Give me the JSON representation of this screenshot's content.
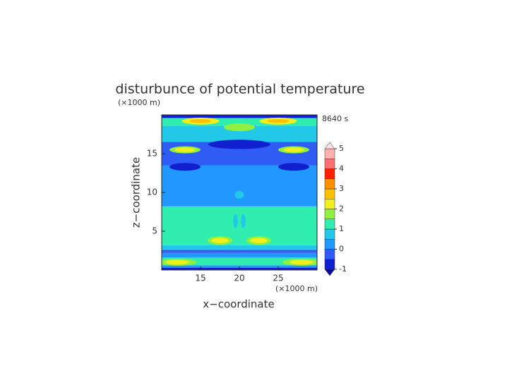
{
  "chart_data": {
    "type": "contour",
    "title": "disturbunce of potential temperature",
    "time_label": "8640 s",
    "x_label": "x−coordinate",
    "y_label": "z−coordinate",
    "x_unit": "(×1000 m)",
    "y_unit": "(×1000 m)",
    "xlim": [
      10,
      30
    ],
    "ylim": [
      0,
      20
    ],
    "xticks": [
      15,
      20,
      25
    ],
    "yticks": [
      5,
      10,
      15
    ],
    "colorbar": {
      "ticks": [
        -1,
        0,
        1,
        2,
        3,
        4,
        5
      ],
      "levels": [
        -1,
        -0.5,
        0,
        0.5,
        1,
        1.5,
        2,
        2.5,
        3,
        3.5,
        4,
        4.5,
        5
      ],
      "colors": [
        "#1020d0",
        "#2f5cf5",
        "#2098ff",
        "#22c8e8",
        "#30eeb0",
        "#90f040",
        "#f0f020",
        "#ffc000",
        "#ff9000",
        "#ff2000",
        "#ff7070",
        "#ffb0b0"
      ],
      "under_color": "#0a0aa0",
      "over_color": "#ffe0e0"
    },
    "bands": [
      {
        "z0": 0,
        "z1": 0.3,
        "value": -0.75
      },
      {
        "z0": 0.3,
        "z1": 0.6,
        "value": 0.25
      },
      {
        "z0": 0.6,
        "z1": 1.6,
        "value": 1.25
      },
      {
        "z0": 1.6,
        "z1": 2.2,
        "value": 0.25
      },
      {
        "z0": 2.2,
        "z1": 2.6,
        "value": -0.25
      },
      {
        "z0": 2.6,
        "z1": 3.2,
        "value": 0.75
      },
      {
        "z0": 3.2,
        "z1": 8.2,
        "value": 1.25
      },
      {
        "z0": 8.2,
        "z1": 13.5,
        "value": 0.25
      },
      {
        "z0": 13.5,
        "z1": 16.5,
        "value": -0.25
      },
      {
        "z0": 16.5,
        "z1": 18.6,
        "value": 0.75
      },
      {
        "z0": 18.6,
        "z1": 19.6,
        "value": 1.25
      },
      {
        "z0": 19.6,
        "z1": 20,
        "value": -0.75
      }
    ],
    "blobs": [
      {
        "x": 12,
        "z": 1,
        "rx": 2.5,
        "rz": 0.45,
        "value": 1.75
      },
      {
        "x": 28,
        "z": 1,
        "rx": 2.5,
        "rz": 0.45,
        "value": 1.75
      },
      {
        "x": 12,
        "z": 1,
        "rx": 1.5,
        "rz": 0.3,
        "value": 2.25
      },
      {
        "x": 28,
        "z": 1,
        "rx": 1.5,
        "rz": 0.3,
        "value": 2.25
      },
      {
        "x": 17.5,
        "z": 3.8,
        "rx": 1.6,
        "rz": 0.55,
        "value": 1.75
      },
      {
        "x": 22.5,
        "z": 3.8,
        "rx": 1.6,
        "rz": 0.55,
        "value": 1.75
      },
      {
        "x": 17.5,
        "z": 3.8,
        "rx": 1.1,
        "rz": 0.35,
        "value": 2.25
      },
      {
        "x": 22.5,
        "z": 3.8,
        "rx": 1.1,
        "rz": 0.35,
        "value": 2.25
      },
      {
        "x": 19.5,
        "z": 6.3,
        "rx": 0.3,
        "rz": 0.9,
        "value": 0.75
      },
      {
        "x": 20.5,
        "z": 6.3,
        "rx": 0.3,
        "rz": 0.9,
        "value": 0.75
      },
      {
        "x": 20,
        "z": 9.7,
        "rx": 0.6,
        "rz": 0.5,
        "value": 0.75
      },
      {
        "x": 13,
        "z": 13.3,
        "rx": 2,
        "rz": 0.5,
        "value": -0.75
      },
      {
        "x": 27,
        "z": 13.3,
        "rx": 2,
        "rz": 0.5,
        "value": -0.75
      },
      {
        "x": 20,
        "z": 16.2,
        "rx": 4,
        "rz": 0.6,
        "value": -0.75
      },
      {
        "x": 13,
        "z": 15.5,
        "rx": 2,
        "rz": 0.45,
        "value": 1.75
      },
      {
        "x": 27,
        "z": 15.5,
        "rx": 2,
        "rz": 0.45,
        "value": 1.75
      },
      {
        "x": 13,
        "z": 15.5,
        "rx": 1.3,
        "rz": 0.3,
        "value": 2.25
      },
      {
        "x": 27,
        "z": 15.5,
        "rx": 1.3,
        "rz": 0.3,
        "value": 2.25
      },
      {
        "x": 20,
        "z": 18.4,
        "rx": 2,
        "rz": 0.5,
        "value": 1.75
      },
      {
        "x": 15,
        "z": 19.2,
        "rx": 2.4,
        "rz": 0.45,
        "value": 2.25
      },
      {
        "x": 25,
        "z": 19.2,
        "rx": 2.4,
        "rz": 0.45,
        "value": 2.25
      },
      {
        "x": 15,
        "z": 19.2,
        "rx": 1.4,
        "rz": 0.25,
        "value": 2.75
      },
      {
        "x": 25,
        "z": 19.2,
        "rx": 1.4,
        "rz": 0.25,
        "value": 2.75
      }
    ]
  }
}
